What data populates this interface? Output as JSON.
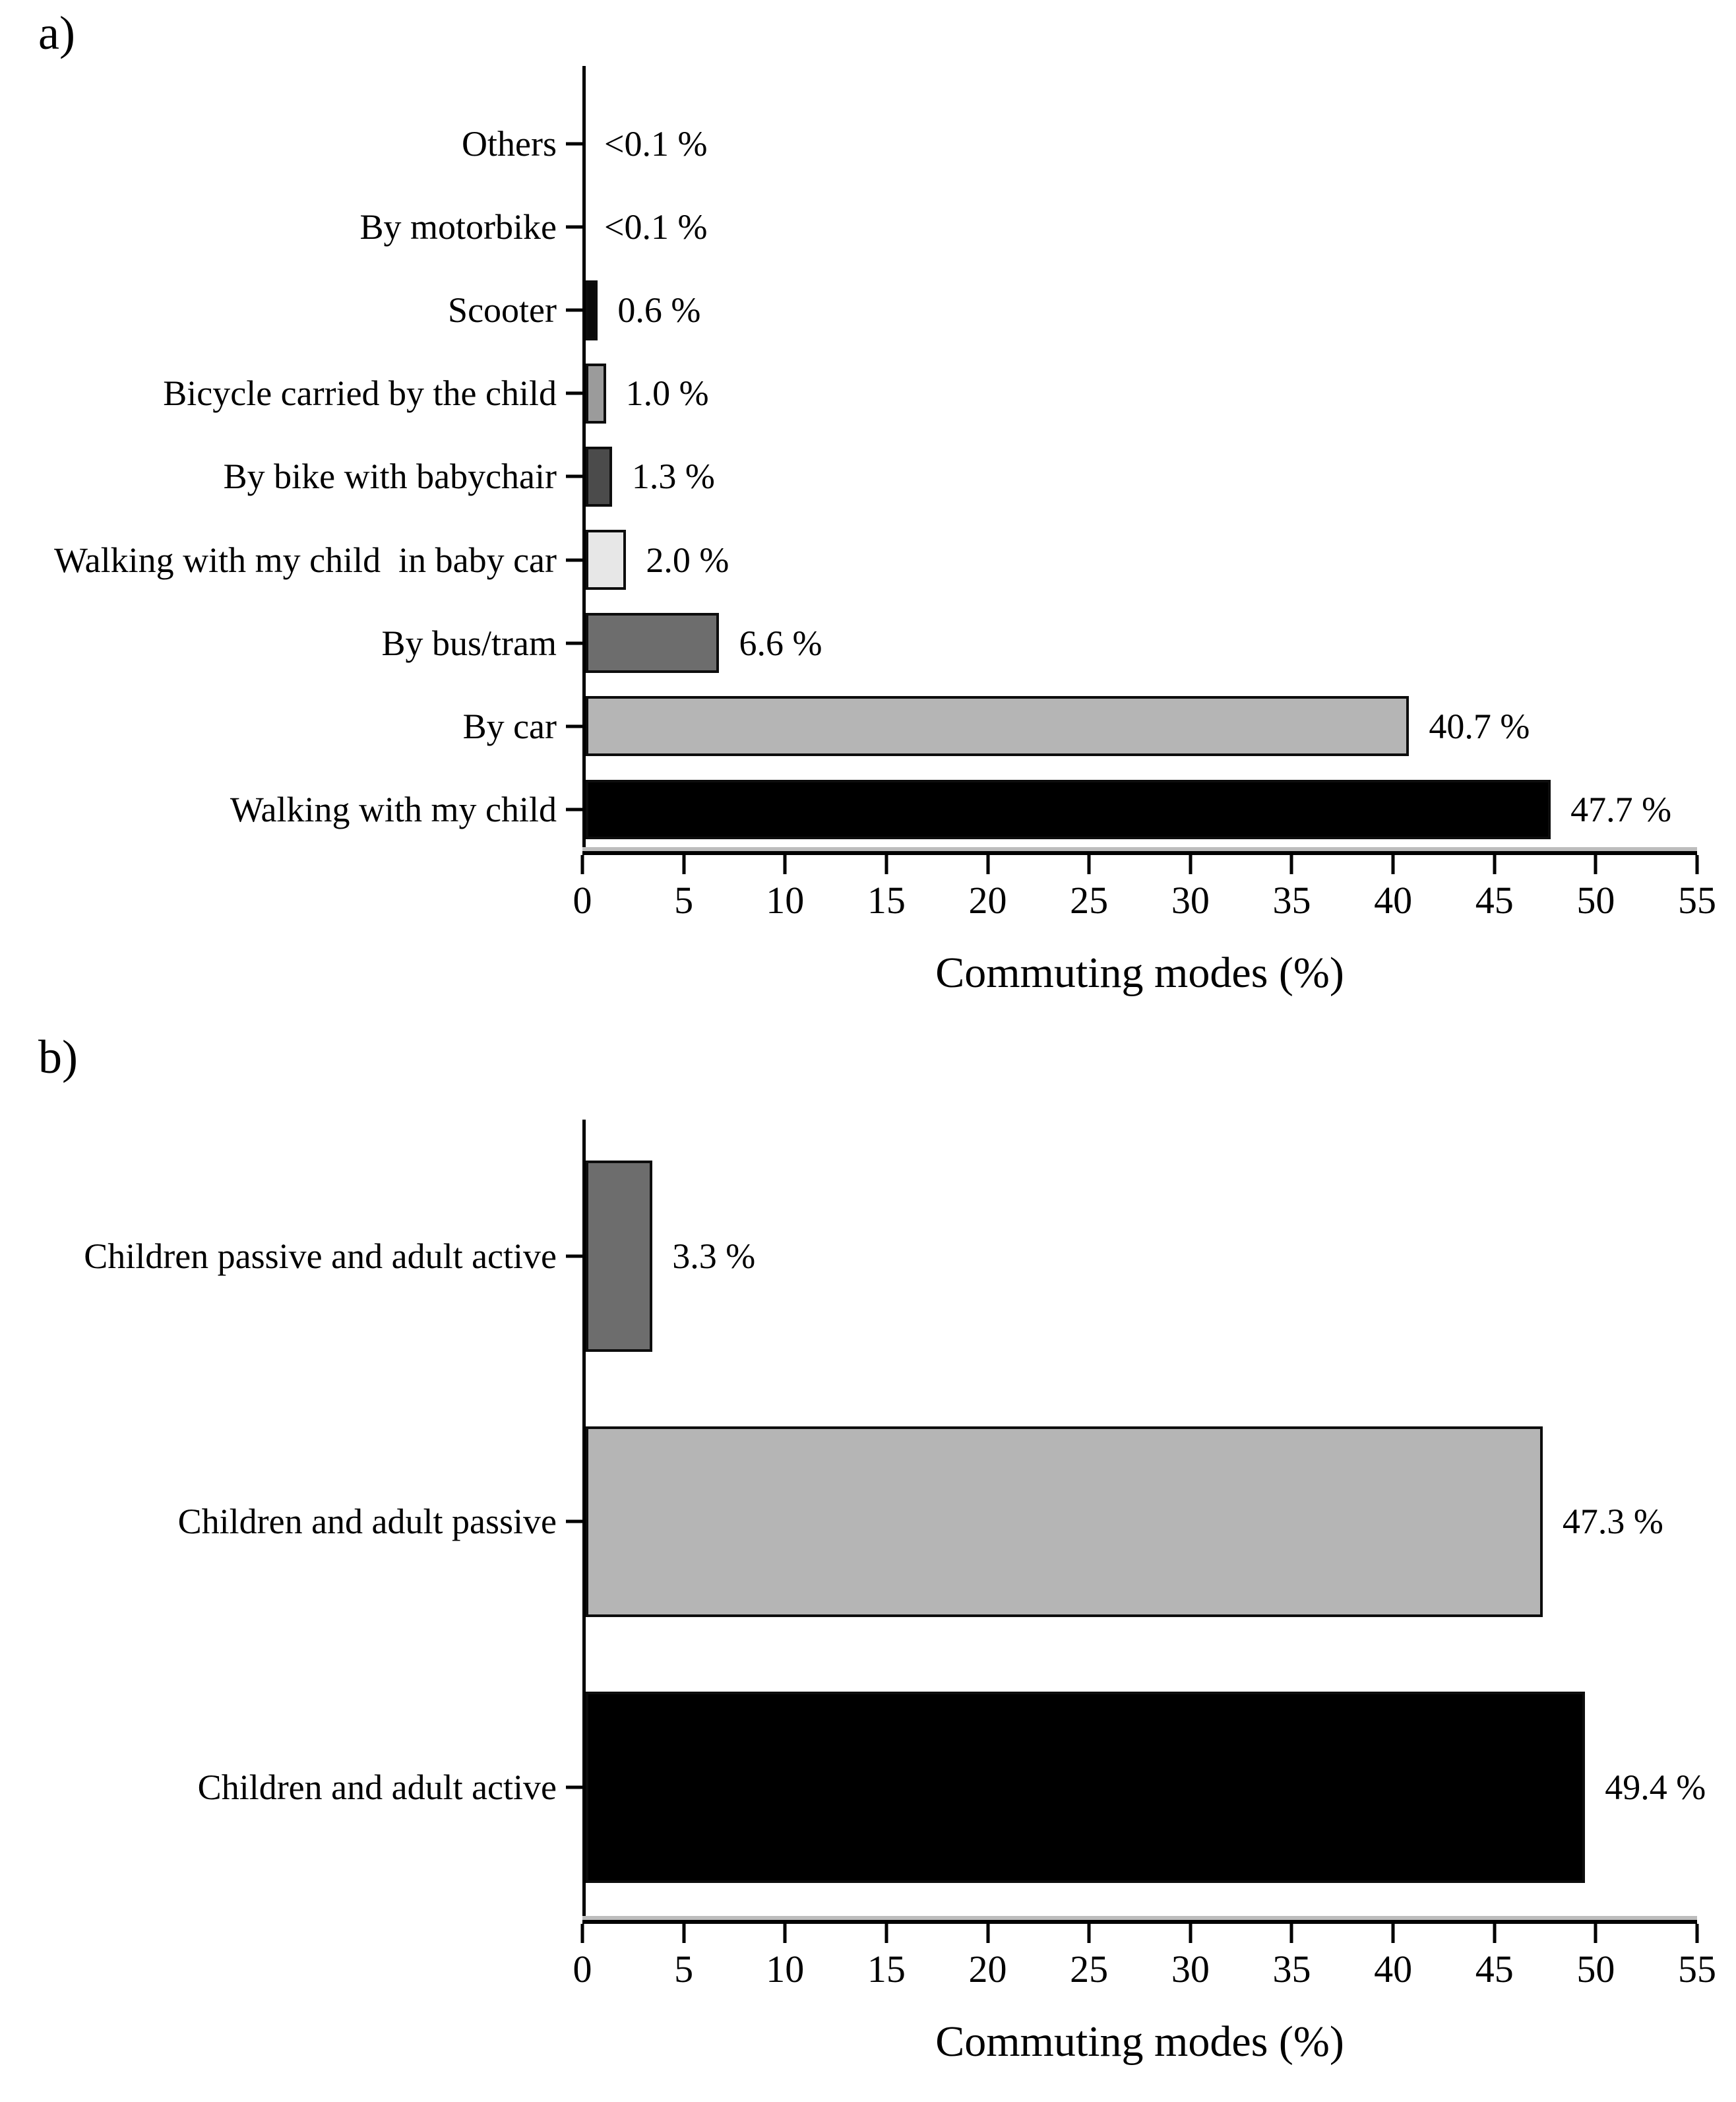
{
  "panels": [
    {
      "letter": "a)",
      "x_axis_title": "Commuting modes (%)",
      "x_max": 55,
      "x_ticks": [
        "0",
        "5",
        "10",
        "15",
        "20",
        "25",
        "30",
        "35",
        "40",
        "45",
        "50",
        "55"
      ],
      "bars": [
        {
          "category": "Others",
          "value": 0,
          "value_label": "<0.1 %",
          "color": "#000000",
          "has_bar": false
        },
        {
          "category": "By motorbike",
          "value": 0,
          "value_label": "<0.1 %",
          "color": "#000000",
          "has_bar": false
        },
        {
          "category": "Scooter",
          "value": 0.6,
          "value_label": "0.6 %",
          "color": "#0a0a0a",
          "has_bar": true
        },
        {
          "category": "Bicycle carried by the child",
          "value": 1.0,
          "value_label": "1.0 %",
          "color": "#9b9b9b",
          "has_bar": true
        },
        {
          "category": "By bike with babychair",
          "value": 1.3,
          "value_label": "1.3 %",
          "color": "#4b4b4b",
          "has_bar": true
        },
        {
          "category": "Walking with my child  in baby car",
          "value": 2.0,
          "value_label": "2.0 %",
          "color": "#e7e7e7",
          "has_bar": true
        },
        {
          "category": "By bus/tram",
          "value": 6.6,
          "value_label": "6.6 %",
          "color": "#6d6d6d",
          "has_bar": true
        },
        {
          "category": "By car",
          "value": 40.7,
          "value_label": "40.7 %",
          "color": "#b5b5b5",
          "has_bar": true
        },
        {
          "category": "Walking with my child",
          "value": 47.7,
          "value_label": "47.7 %",
          "color": "#000000",
          "has_bar": true
        }
      ]
    },
    {
      "letter": "b)",
      "x_axis_title": "Commuting modes (%)",
      "x_max": 55,
      "x_ticks": [
        "0",
        "5",
        "10",
        "15",
        "20",
        "25",
        "30",
        "35",
        "40",
        "45",
        "50",
        "55"
      ],
      "bars": [
        {
          "category": "Children passive and adult active",
          "value": 3.3,
          "value_label": "3.3 %",
          "color": "#6d6d6d",
          "has_bar": true
        },
        {
          "category": "Children and adult passive",
          "value": 47.3,
          "value_label": "47.3 %",
          "color": "#b5b5b5",
          "has_bar": true
        },
        {
          "category": "Children and adult active",
          "value": 49.4,
          "value_label": "49.4 %",
          "color": "#000000",
          "has_bar": true
        }
      ]
    }
  ],
  "chart_data": [
    {
      "type": "bar",
      "orientation": "horizontal",
      "panel": "a)",
      "categories": [
        "Others",
        "By motorbike",
        "Scooter",
        "Bicycle carried by the child",
        "By bike with babychair",
        "Walking with my child  in baby car",
        "By bus/tram",
        "By car",
        "Walking with my child"
      ],
      "values": [
        0.05,
        0.05,
        0.6,
        1.0,
        1.3,
        2.0,
        6.6,
        40.7,
        47.7
      ],
      "value_labels": [
        "<0.1 %",
        "<0.1 %",
        "0.6 %",
        "1.0 %",
        "1.3 %",
        "2.0 %",
        "6.6 %",
        "40.7 %",
        "47.7 %"
      ],
      "bar_colors": [
        "none",
        "none",
        "#0a0a0a",
        "#9b9b9b",
        "#4b4b4b",
        "#e7e7e7",
        "#6d6d6d",
        "#b5b5b5",
        "#000000"
      ],
      "xlabel": "Commuting modes (%)",
      "ylabel": "",
      "xlim": [
        0,
        55
      ],
      "xticks": [
        0,
        5,
        10,
        15,
        20,
        25,
        30,
        35,
        40,
        45,
        50,
        55
      ],
      "grid": false,
      "legend": false
    },
    {
      "type": "bar",
      "orientation": "horizontal",
      "panel": "b)",
      "categories": [
        "Children passive and adult active",
        "Children and adult passive",
        "Children and adult active"
      ],
      "values": [
        3.3,
        47.3,
        49.4
      ],
      "value_labels": [
        "3.3 %",
        "47.3 %",
        "49.4 %"
      ],
      "bar_colors": [
        "#6d6d6d",
        "#b5b5b5",
        "#000000"
      ],
      "xlabel": "Commuting modes (%)",
      "ylabel": "",
      "xlim": [
        0,
        55
      ],
      "xticks": [
        0,
        5,
        10,
        15,
        20,
        25,
        30,
        35,
        40,
        45,
        50,
        55
      ],
      "grid": false,
      "legend": false
    }
  ]
}
